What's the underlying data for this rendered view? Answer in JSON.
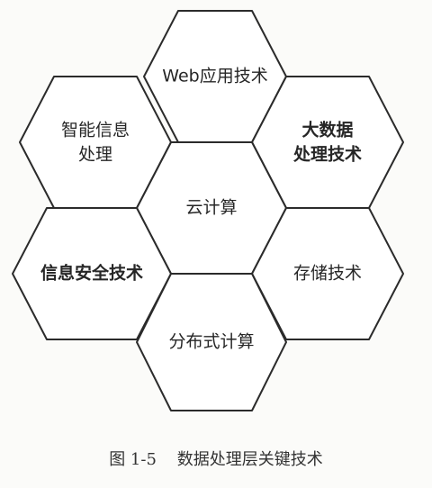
{
  "diagram": {
    "hexagons": [
      {
        "id": "web",
        "lines": [
          "Web应用技术"
        ],
        "bold": false
      },
      {
        "id": "intelligent",
        "lines": [
          "智能信息",
          "处理"
        ],
        "bold": false
      },
      {
        "id": "bigdata",
        "lines": [
          "大数据",
          "处理技术"
        ],
        "bold": true
      },
      {
        "id": "cloud",
        "lines": [
          "云计算"
        ],
        "bold": false
      },
      {
        "id": "security",
        "lines": [
          "信息安全技术"
        ],
        "bold": true
      },
      {
        "id": "storage",
        "lines": [
          "存储技术"
        ],
        "bold": false
      },
      {
        "id": "distributed",
        "lines": [
          "分布式计算"
        ],
        "bold": false
      }
    ]
  },
  "caption": {
    "figure_number": "图 1-5",
    "title": "数据处理层关键技术"
  }
}
